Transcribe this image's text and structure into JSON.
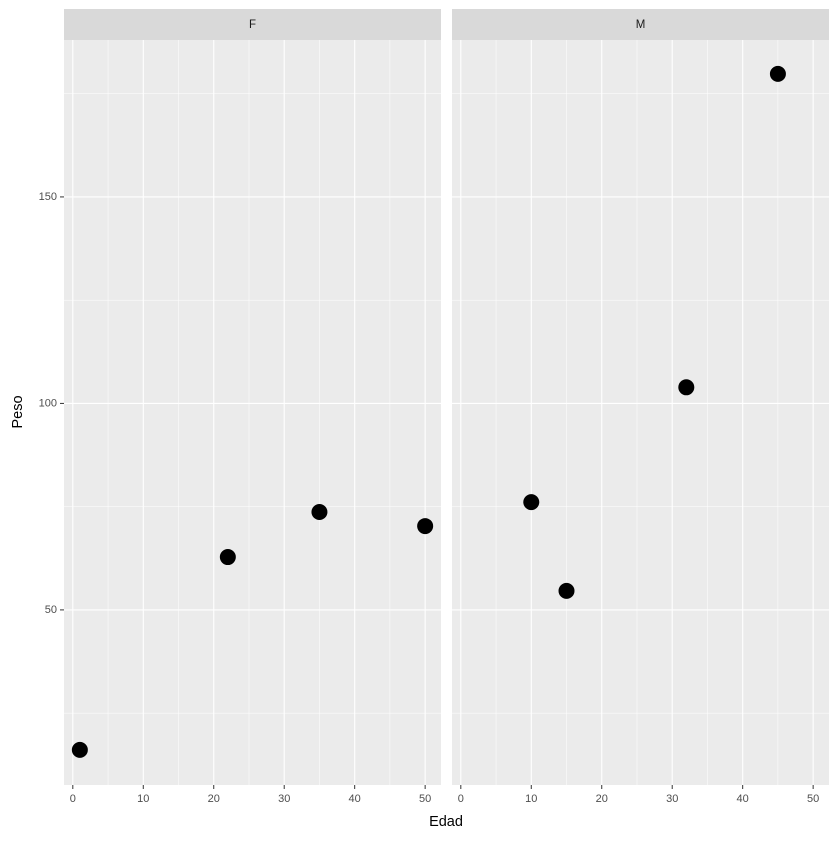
{
  "chart_data": {
    "type": "scatter",
    "xlabel": "Edad",
    "ylabel": "Peso",
    "color": "#000000",
    "xlim": [
      -1.25,
      52.25
    ],
    "ylim": [
      7.6,
      188
    ],
    "xticks": [
      0,
      10,
      20,
      30,
      40,
      50
    ],
    "yticks": [
      50,
      100,
      150
    ],
    "grid": true,
    "facets": [
      {
        "label": "F",
        "x": [
          1,
          22,
          35,
          50
        ],
        "y": [
          16.1,
          62.8,
          73.7,
          70.3
        ]
      },
      {
        "label": "M",
        "x": [
          10,
          15,
          32,
          45
        ],
        "y": [
          76.1,
          54.6,
          103.9,
          179.8
        ]
      }
    ]
  }
}
